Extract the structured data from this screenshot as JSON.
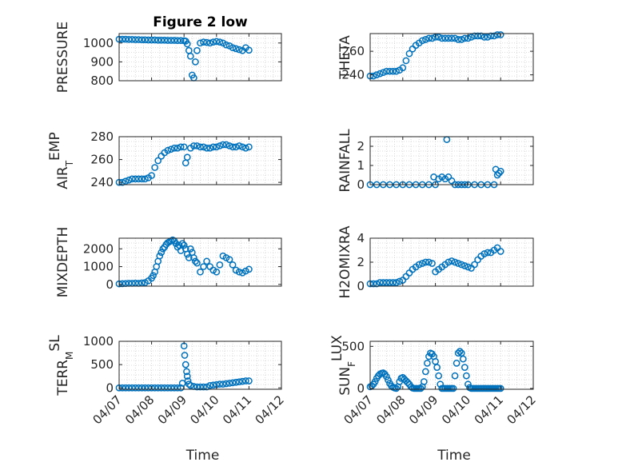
{
  "figure": {
    "title": "Figure 2 low",
    "marker_color": "#0072BD",
    "grid": true,
    "grid_style": "dotted"
  },
  "chart_data": [
    {
      "type": "scatter",
      "title": "Figure 2 low",
      "ylabel": "PRESSURE",
      "xlabel": "",
      "xlim": [
        0,
        5
      ],
      "ylim": [
        800,
        1050
      ],
      "yticks": [
        800,
        900,
        1000
      ],
      "xtick_labels_shown": false,
      "series": [
        {
          "x": [
            0.0,
            0.1,
            0.2,
            0.3,
            0.4,
            0.5,
            0.6,
            0.7,
            0.8,
            0.9,
            1.0,
            1.1,
            1.2,
            1.3,
            1.4,
            1.5,
            1.6,
            1.7,
            1.8,
            1.9,
            2.0,
            2.05,
            2.1,
            2.15,
            2.2,
            2.25,
            2.3,
            2.35,
            2.4,
            2.5,
            2.6,
            2.7,
            2.8,
            2.9,
            3.0,
            3.1,
            3.2,
            3.3,
            3.4,
            3.5,
            3.6,
            3.7,
            3.8,
            3.9,
            4.0
          ],
          "y": [
            1020,
            1020,
            1020,
            1019,
            1019,
            1018,
            1018,
            1017,
            1017,
            1016,
            1016,
            1016,
            1015,
            1015,
            1015,
            1014,
            1014,
            1014,
            1013,
            1013,
            1012,
            1010,
            995,
            960,
            930,
            830,
            815,
            900,
            960,
            1000,
            1005,
            1003,
            1000,
            1005,
            1008,
            1005,
            1000,
            990,
            985,
            975,
            970,
            965,
            960,
            975,
            962
          ]
        }
      ]
    },
    {
      "type": "scatter",
      "title": "",
      "ylabel": "THETA",
      "xlabel": "",
      "xlim": [
        0,
        5
      ],
      "ylim": [
        235,
        275
      ],
      "yticks": [
        240,
        260
      ],
      "xtick_labels_shown": false,
      "series": [
        {
          "x": [
            0.0,
            0.1,
            0.2,
            0.3,
            0.4,
            0.5,
            0.6,
            0.7,
            0.8,
            0.9,
            1.0,
            1.1,
            1.2,
            1.3,
            1.4,
            1.5,
            1.6,
            1.7,
            1.8,
            1.9,
            2.0,
            2.1,
            2.2,
            2.3,
            2.4,
            2.5,
            2.6,
            2.7,
            2.8,
            2.9,
            3.0,
            3.1,
            3.2,
            3.3,
            3.4,
            3.5,
            3.6,
            3.7,
            3.8,
            3.9,
            4.0
          ],
          "y": [
            239,
            239,
            240,
            241,
            242,
            243,
            243,
            243,
            243,
            244,
            246,
            252,
            258,
            262,
            265,
            267,
            269,
            270,
            271,
            271,
            272,
            272,
            271,
            271,
            271,
            271,
            271,
            270,
            270,
            271,
            271,
            272,
            273,
            273,
            273,
            272,
            272,
            273,
            273,
            274,
            274
          ]
        }
      ]
    },
    {
      "type": "scatter",
      "title": "",
      "ylabel": "AIR_TEMP",
      "ylabel_main": "AIR",
      "ylabel_sub": "T",
      "ylabel_rest": "EMP",
      "xlabel": "",
      "xlim": [
        0,
        5
      ],
      "ylim": [
        238,
        280
      ],
      "yticks": [
        240,
        260,
        280
      ],
      "xtick_labels_shown": false,
      "series": [
        {
          "x": [
            0.0,
            0.1,
            0.2,
            0.3,
            0.4,
            0.5,
            0.6,
            0.7,
            0.8,
            0.9,
            1.0,
            1.1,
            1.2,
            1.3,
            1.4,
            1.5,
            1.6,
            1.7,
            1.8,
            1.9,
            2.0,
            2.05,
            2.1,
            2.2,
            2.3,
            2.4,
            2.5,
            2.6,
            2.7,
            2.8,
            2.9,
            3.0,
            3.1,
            3.2,
            3.3,
            3.4,
            3.5,
            3.6,
            3.7,
            3.8,
            3.9,
            4.0
          ],
          "y": [
            240,
            240,
            241,
            242,
            243,
            243,
            243,
            243,
            243,
            244,
            246,
            253,
            259,
            263,
            266,
            268,
            269,
            270,
            270,
            271,
            271,
            257,
            262,
            270,
            272,
            272,
            271,
            271,
            270,
            270,
            271,
            271,
            272,
            273,
            273,
            272,
            271,
            271,
            272,
            271,
            270,
            271
          ]
        }
      ]
    },
    {
      "type": "scatter",
      "title": "",
      "ylabel": "RAINFALL",
      "xlabel": "",
      "xlim": [
        0,
        5
      ],
      "ylim": [
        0,
        2.5
      ],
      "yticks": [
        0,
        1,
        2
      ],
      "xtick_labels_shown": false,
      "series": [
        {
          "x": [
            0.0,
            0.2,
            0.4,
            0.6,
            0.8,
            1.0,
            1.2,
            1.4,
            1.6,
            1.8,
            1.95,
            2.0,
            2.1,
            2.2,
            2.3,
            2.4,
            2.5,
            2.6,
            2.7,
            2.8,
            2.9,
            3.0,
            3.2,
            3.4,
            3.6,
            3.8,
            3.85,
            3.9,
            3.95,
            4.0
          ],
          "y": [
            0,
            0,
            0,
            0,
            0,
            0,
            0,
            0,
            0,
            0,
            0.4,
            0,
            0.3,
            0.4,
            0.3,
            0.4,
            0.2,
            0,
            0,
            0,
            0,
            0,
            0,
            0,
            0,
            0,
            0.8,
            0.5,
            0.6,
            0.7
          ]
        },
        {
          "x": [
            2.35
          ],
          "y": [
            2.35
          ]
        }
      ]
    },
    {
      "type": "scatter",
      "title": "",
      "ylabel": "MIXDEPTH",
      "xlabel": "",
      "xlim": [
        0,
        5
      ],
      "ylim": [
        -100,
        2600
      ],
      "yticks": [
        0,
        1000,
        2000
      ],
      "xtick_labels_shown": false,
      "series": [
        {
          "x": [
            0.0,
            0.1,
            0.2,
            0.3,
            0.4,
            0.5,
            0.6,
            0.7,
            0.8,
            0.9,
            1.0,
            1.05,
            1.1,
            1.15,
            1.2,
            1.25,
            1.3,
            1.35,
            1.4,
            1.45,
            1.5,
            1.55,
            1.6,
            1.65,
            1.7,
            1.75,
            1.8,
            1.85,
            1.9,
            1.95,
            2.0,
            2.05,
            2.1,
            2.15,
            2.2,
            2.25,
            2.3,
            2.35,
            2.4,
            2.5,
            2.6,
            2.7,
            2.8,
            2.9,
            3.0,
            3.1,
            3.2,
            3.3,
            3.4,
            3.5,
            3.6,
            3.7,
            3.8,
            3.9,
            4.0
          ],
          "y": [
            30,
            40,
            50,
            60,
            60,
            70,
            60,
            80,
            100,
            200,
            350,
            500,
            700,
            1000,
            1300,
            1600,
            1800,
            2000,
            2100,
            2250,
            2350,
            2400,
            2450,
            2500,
            2450,
            2300,
            2100,
            2200,
            1900,
            2300,
            2200,
            2000,
            1700,
            1500,
            2000,
            1800,
            1500,
            1300,
            1200,
            700,
            1000,
            1300,
            1000,
            800,
            700,
            1100,
            1600,
            1500,
            1400,
            1100,
            800,
            700,
            650,
            750,
            850
          ]
        }
      ]
    },
    {
      "type": "scatter",
      "title": "",
      "ylabel": "H2OMIXRA",
      "xlabel": "",
      "xlim": [
        0,
        5
      ],
      "ylim": [
        0,
        4
      ],
      "yticks": [
        0,
        2,
        4
      ],
      "xtick_labels_shown": false,
      "series": [
        {
          "x": [
            0.0,
            0.1,
            0.2,
            0.3,
            0.4,
            0.5,
            0.6,
            0.7,
            0.8,
            0.9,
            1.0,
            1.1,
            1.2,
            1.3,
            1.4,
            1.5,
            1.6,
            1.7,
            1.8,
            1.9,
            2.0,
            2.1,
            2.2,
            2.3,
            2.4,
            2.5,
            2.6,
            2.7,
            2.8,
            2.9,
            3.0,
            3.1,
            3.2,
            3.3,
            3.4,
            3.5,
            3.6,
            3.7,
            3.8,
            3.9,
            4.0
          ],
          "y": [
            0.2,
            0.2,
            0.2,
            0.3,
            0.3,
            0.3,
            0.3,
            0.3,
            0.3,
            0.4,
            0.5,
            0.8,
            1.1,
            1.4,
            1.6,
            1.8,
            1.9,
            2.0,
            2.0,
            1.9,
            1.2,
            1.4,
            1.6,
            1.8,
            2.0,
            2.1,
            2.0,
            1.9,
            1.8,
            1.7,
            1.6,
            1.5,
            1.8,
            2.2,
            2.5,
            2.7,
            2.8,
            2.8,
            3.0,
            3.2,
            2.9
          ]
        }
      ]
    },
    {
      "type": "scatter",
      "title": "",
      "ylabel": "TERR_MSL",
      "ylabel_main": "TERR",
      "ylabel_sub": "M",
      "ylabel_rest": "SL",
      "xlabel": "Time",
      "xlim": [
        0,
        5
      ],
      "ylim": [
        -30,
        1000
      ],
      "yticks": [
        0,
        500,
        1000
      ],
      "xtick_labels_shown": true,
      "xticks": [
        0,
        1,
        2,
        3,
        4,
        5
      ],
      "xtick_labels": [
        "04/07",
        "04/08",
        "04/09",
        "04/10",
        "04/11",
        "04/12"
      ],
      "series": [
        {
          "x": [
            0.0,
            0.1,
            0.2,
            0.3,
            0.4,
            0.5,
            0.6,
            0.7,
            0.8,
            0.9,
            1.0,
            1.1,
            1.2,
            1.3,
            1.4,
            1.5,
            1.6,
            1.7,
            1.8,
            1.9,
            1.95,
            2.0,
            2.02,
            2.05,
            2.08,
            2.1,
            2.12,
            2.15,
            2.2,
            2.3,
            2.4,
            2.5,
            2.6,
            2.7,
            2.8,
            2.9,
            3.0,
            3.1,
            3.2,
            3.3,
            3.4,
            3.5,
            3.6,
            3.7,
            3.8,
            3.9,
            4.0
          ],
          "y": [
            0,
            0,
            0,
            0,
            0,
            0,
            0,
            0,
            0,
            0,
            0,
            0,
            0,
            0,
            0,
            0,
            0,
            0,
            0,
            0,
            100,
            900,
            700,
            500,
            350,
            250,
            150,
            80,
            50,
            30,
            20,
            20,
            20,
            20,
            50,
            60,
            70,
            80,
            80,
            90,
            100,
            110,
            120,
            130,
            140,
            150,
            150
          ]
        }
      ]
    },
    {
      "type": "scatter",
      "title": "",
      "ylabel": "SUN_FLUX",
      "ylabel_main": "SUN",
      "ylabel_sub": "F",
      "ylabel_rest": "LUX",
      "xlabel": "Time",
      "xlim": [
        0,
        5
      ],
      "ylim": [
        -10,
        560
      ],
      "yticks": [
        0,
        500
      ],
      "xtick_labels_shown": true,
      "xticks": [
        0,
        1,
        2,
        3,
        4,
        5
      ],
      "xtick_labels": [
        "04/07",
        "04/08",
        "04/09",
        "04/10",
        "04/11",
        "04/12"
      ],
      "series": [
        {
          "x": [
            0.0,
            0.05,
            0.1,
            0.15,
            0.2,
            0.25,
            0.3,
            0.35,
            0.4,
            0.45,
            0.5,
            0.55,
            0.6,
            0.65,
            0.7,
            0.75,
            0.8,
            0.85,
            0.9,
            0.95,
            1.0,
            1.05,
            1.1,
            1.15,
            1.2,
            1.25,
            1.3,
            1.35,
            1.4,
            1.45,
            1.5,
            1.55,
            1.6,
            1.65,
            1.7,
            1.75,
            1.8,
            1.85,
            1.9,
            1.95,
            2.0,
            2.05,
            2.1,
            2.15,
            2.2,
            2.25,
            2.3,
            2.35,
            2.4,
            2.45,
            2.5,
            2.55,
            2.6,
            2.65,
            2.7,
            2.75,
            2.8,
            2.85,
            2.9,
            2.95,
            3.0,
            3.05,
            3.1,
            3.15,
            3.2,
            3.25,
            3.3,
            3.35,
            3.4,
            3.45,
            3.5,
            3.55,
            3.6,
            3.65,
            3.7,
            3.75,
            3.8,
            3.85,
            3.9,
            3.95,
            4.0
          ],
          "y": [
            20,
            30,
            50,
            80,
            120,
            150,
            170,
            180,
            185,
            170,
            140,
            100,
            60,
            30,
            15,
            5,
            0,
            20,
            80,
            120,
            130,
            110,
            90,
            70,
            50,
            20,
            5,
            0,
            0,
            0,
            0,
            0,
            20,
            80,
            200,
            300,
            380,
            420,
            410,
            380,
            320,
            250,
            150,
            50,
            0,
            0,
            0,
            0,
            0,
            0,
            0,
            0,
            150,
            300,
            420,
            440,
            420,
            350,
            250,
            150,
            50,
            10,
            0,
            0,
            0,
            0,
            0,
            0,
            0,
            0,
            0,
            0,
            0,
            0,
            0,
            0,
            0,
            0,
            0,
            0,
            0
          ]
        }
      ]
    }
  ]
}
